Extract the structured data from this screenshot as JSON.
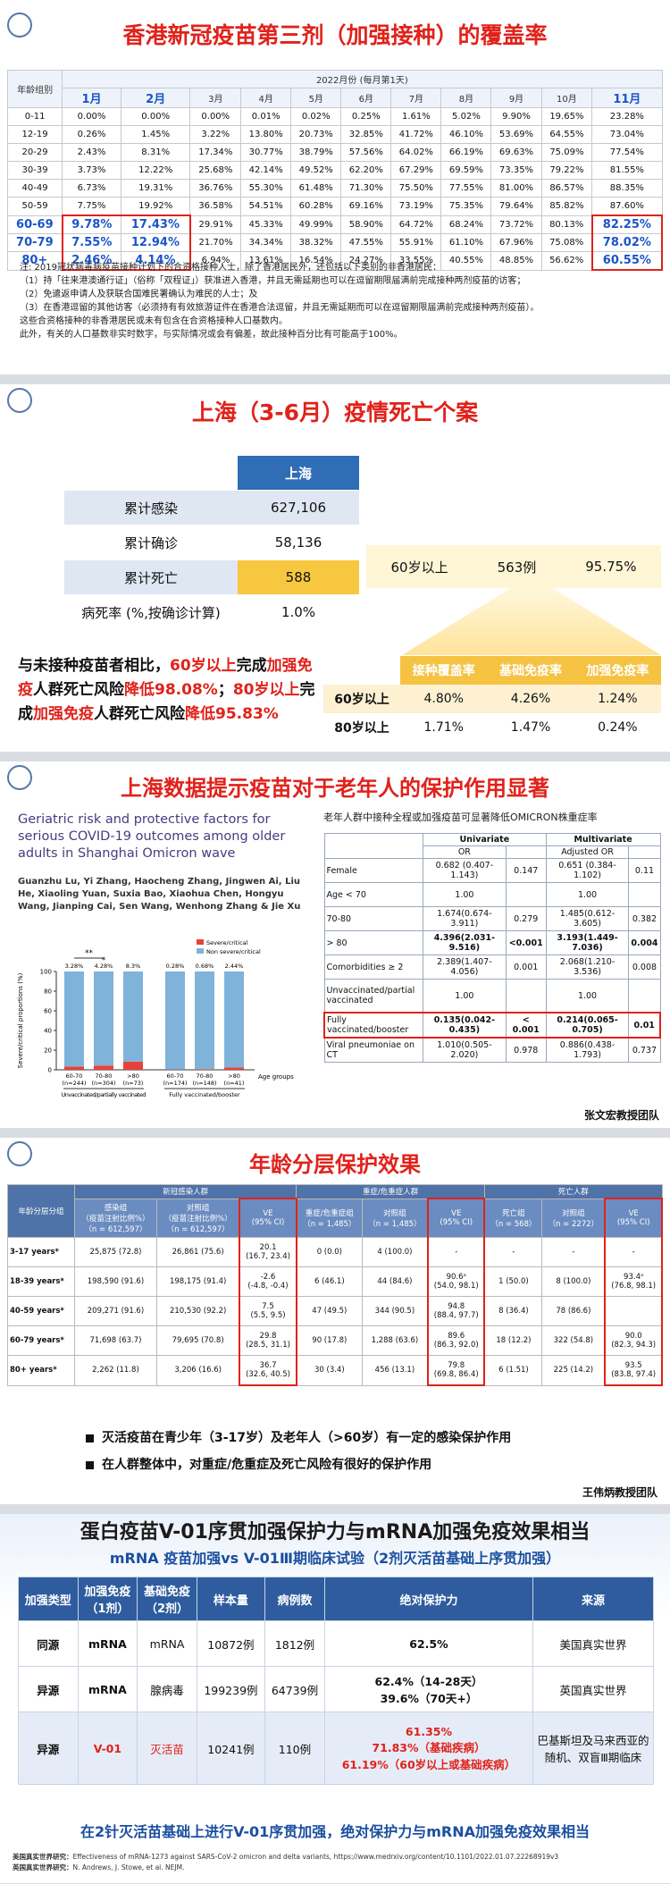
{
  "s1": {
    "title": "香港新冠疫苗第三剂（加强接种）的覆盖率",
    "table": {
      "corner": "年龄组别",
      "span_header": "2022月份 (每月第1天)",
      "months": [
        "1月",
        "2月",
        "3月",
        "4月",
        "5月",
        "6月",
        "7月",
        "8月",
        "9月",
        "10月",
        "11月"
      ],
      "rows": [
        [
          "0-11",
          "0.00%",
          "0.00%",
          "0.00%",
          "0.01%",
          "0.02%",
          "0.25%",
          "1.61%",
          "5.02%",
          "9.90%",
          "19.65%",
          "23.28%"
        ],
        [
          "12-19",
          "0.26%",
          "1.45%",
          "3.22%",
          "13.80%",
          "20.73%",
          "32.85%",
          "41.72%",
          "46.10%",
          "53.69%",
          "64.55%",
          "73.04%"
        ],
        [
          "20-29",
          "2.43%",
          "8.31%",
          "17.34%",
          "30.77%",
          "38.79%",
          "57.56%",
          "64.02%",
          "66.19%",
          "69.63%",
          "75.09%",
          "77.54%"
        ],
        [
          "30-39",
          "3.73%",
          "12.22%",
          "25.68%",
          "42.14%",
          "49.52%",
          "62.20%",
          "67.29%",
          "69.59%",
          "73.35%",
          "79.22%",
          "81.55%"
        ],
        [
          "40-49",
          "6.73%",
          "19.31%",
          "36.76%",
          "55.30%",
          "61.48%",
          "71.30%",
          "75.50%",
          "77.55%",
          "81.00%",
          "86.57%",
          "88.35%"
        ],
        [
          "50-59",
          "7.75%",
          "19.92%",
          "36.58%",
          "54.51%",
          "60.28%",
          "69.16%",
          "73.19%",
          "75.35%",
          "79.64%",
          "85.82%",
          "87.60%"
        ],
        [
          "60-69",
          "9.78%",
          "17.43%",
          "29.91%",
          "45.33%",
          "49.99%",
          "58.90%",
          "64.72%",
          "68.24%",
          "73.72%",
          "80.13%",
          "82.25%"
        ],
        [
          "70-79",
          "7.55%",
          "12.94%",
          "21.70%",
          "34.34%",
          "38.32%",
          "47.55%",
          "55.91%",
          "61.10%",
          "67.96%",
          "75.08%",
          "78.02%"
        ],
        [
          "80+",
          "2.46%",
          "4.14%",
          "6.94%",
          "13.61%",
          "16.54%",
          "24.27%",
          "33.55%",
          "40.55%",
          "48.85%",
          "56.62%",
          "60.55%"
        ]
      ]
    },
    "notes": [
      "注: 2019冠状病毒病疫苗接种计划下的合资格接种人士，除了香港居民外，还包括以下类别的非香港居民：",
      "（1）持「往来港澳通行证」（俗称「双程证」）获准进入香港，并且无需延期也可以在逗留期限届满前完成接种两剂疫苗的访客；",
      "（2）免遣返申请人及获联合国难民署确认为难民的人士；及",
      "（3）在香港逗留的其他访客（必须持有有效旅游证件在香港合法逗留，并且无需延期而可以在逗留期限届满前完成接种两剂疫苗）。",
      "这些合资格接种的非香港居民或未有包含在合资格接种人口基数内。",
      "此外，有关的人口基数非实时数字，与实际情况或会有偏差，故此接种百分比有可能高于100%。"
    ]
  },
  "s2": {
    "title": "上海（3-6月）疫情死亡个案",
    "table": {
      "header": "上海",
      "rows": [
        [
          "累计感染",
          "627,106"
        ],
        [
          "累计确诊",
          "58,136"
        ],
        [
          "累计死亡",
          "588"
        ],
        [
          "病死率 (%,按确诊计算)",
          "1.0%"
        ]
      ]
    },
    "callout": [
      "60岁以上",
      "563例",
      "95.75%"
    ],
    "summary": [
      {
        "text": "与未接种疫苗者相比，",
        "red": false
      },
      {
        "text": "60岁以上",
        "red": true
      },
      {
        "text": "完成",
        "red": false
      },
      {
        "text": "加强免疫",
        "red": true
      },
      {
        "text": "人群死亡风险",
        "red": false
      },
      {
        "text": "降低98.08%",
        "red": true
      },
      {
        "text": "；",
        "red": false
      },
      {
        "text": "80岁以上",
        "red": true
      },
      {
        "text": "完成",
        "red": false
      },
      {
        "text": "加强免疫",
        "red": true
      },
      {
        "text": "人群死亡风险",
        "red": false
      },
      {
        "text": "降低95.83%",
        "red": true
      }
    ],
    "coverage": {
      "headers": [
        "接种覆盖率",
        "基础免疫率",
        "加强免疫率"
      ],
      "rows": [
        [
          "60岁以上",
          "4.80%",
          "4.26%",
          "1.24%"
        ],
        [
          "80岁以上",
          "1.71%",
          "1.47%",
          "0.24%"
        ]
      ]
    }
  },
  "s3": {
    "title": "上海数据提示疫苗对于老年人的保护作用显著",
    "paper_title": "Geriatric risk and protective factors for serious COVID-19 outcomes among older adults in Shanghai Omicron wave",
    "authors": "Guanzhu Lu, Yi Zhang, Haocheng Zhang, Jingwen Ai, Liu He, Xiaoling Yuan, Suxia Bao, Xiaohua Chen, Hongyu Wang, Jianping Cai, Sen Wang, Wenhong Zhang & Jie Xu",
    "figure": {
      "type": "bar",
      "y_label": "Severe/critical proportions (%)",
      "x_label": "Age groups",
      "categories": [
        "60-70",
        "70-80",
        ">80",
        "60-70",
        "70-80",
        ">80"
      ],
      "n_labels": [
        "(n=244)",
        "(n=304)",
        "(n=73)",
        "(n=174)",
        "(n=148)",
        "(n=41)"
      ],
      "groups": [
        "Unvaccinated/partially vaccinated",
        "Fully vaccinated/booster"
      ],
      "series": [
        {
          "name": "Severe/critical",
          "color": "#e8413c",
          "values": [
            3.28,
            4.28,
            8.3,
            0.28,
            0.68,
            2.44
          ],
          "value_labels": [
            "3.28%",
            "4.28%",
            "8.3%",
            "0.28%",
            "0.68%",
            "2.44%"
          ]
        },
        {
          "name": "Non severe/critical",
          "color": "#7fb3d9",
          "values": [
            96.72,
            95.72,
            91.7,
            99.72,
            99.32,
            97.56
          ]
        }
      ],
      "ylim": [
        0,
        100
      ],
      "yticks": [
        0,
        20,
        40,
        60,
        80,
        100
      ],
      "annotations": [
        "**",
        "*"
      ]
    },
    "table_title": "老年人群中接种全程或加强疫苗可显著降低OMICRON株重症率",
    "table": {
      "groups": [
        "Univariate",
        "Multivariate"
      ],
      "sub_headers": [
        "OR",
        "Adjusted OR"
      ],
      "rows": [
        [
          "Female",
          "0.682 (0.407-1.143)",
          "0.147",
          "0.651 (0.384-1.102)",
          "0.11"
        ],
        [
          "Age < 70",
          "1.00",
          null,
          "1.00",
          null
        ],
        [
          "70-80",
          "1.674(0.674-3.911)",
          "0.279",
          "1.485(0.612-3.605)",
          "0.382"
        ],
        [
          "> 80",
          "4.396(2.031-9.516)",
          "<0.001",
          "3.193(1.449-7.036)",
          "0.004"
        ],
        [
          "Comorbidities ≥ 2",
          "2.389(1.407-4.056)",
          "0.001",
          "2.068(1.210-3.536)",
          "0.008"
        ],
        [
          "Unvaccinated/partial vaccinated",
          "1.00",
          null,
          "1.00",
          null
        ],
        [
          "Fully vaccinated/booster",
          "0.135(0.042-0.435)",
          "< 0.001",
          "0.214(0.065-0.705)",
          "0.01"
        ],
        [
          "Viral pneumoniae on CT",
          "1.010(0.505-2.020)",
          "0.978",
          "0.886(0.438-1.793)",
          "0.737"
        ]
      ]
    },
    "credit": "张文宏教授团队"
  },
  "s4": {
    "title": "年龄分层保护效果",
    "table": {
      "corner": "年龄分层分组",
      "groups": [
        {
          "name": "新冠感染人群",
          "cols": [
            "感染组\n（疫苗注射比例%）\n（n = 612,597）",
            "对照组\n（疫苗注射比例%）\n（n = 612,597）",
            "VE\n(95% CI)"
          ]
        },
        {
          "name": "重症/危重症人群",
          "cols": [
            "重症/危重症组\n（n = 1,485）",
            "对照组\n（n = 1,485）",
            "VE\n(95% CI)"
          ]
        },
        {
          "name": "死亡人群",
          "cols": [
            "死亡组\n（n = 568）",
            "对照组\n（n = 2272）",
            "VE\n(95% CI)"
          ]
        }
      ],
      "rows": [
        [
          "3-17 years*",
          "25,875 (72.8)",
          "26,861 (75.6)",
          "20.1\n(16.7, 23.4)",
          "0 (0.0)",
          "4 (100.0)",
          "-",
          "-",
          "-",
          "-"
        ],
        [
          "18-39 years*",
          "198,590 (91.6)",
          "198,175 (91.4)",
          "-2.6\n(-4.8, -0.4)",
          "6 (46.1)",
          "44 (84.6)",
          "90.6ᵃ\n(54.0, 98.1)",
          "1 (50.0)",
          "8 (100.0)",
          "93.4ᵃ\n(76.8, 98.1)"
        ],
        [
          "40-59 years*",
          "209,271 (91.6)",
          "210,530 (92.2)",
          "7.5\n(5.5, 9.5)",
          "47 (49.5)",
          "344 (90.5)",
          "94.8\n(88.4, 97.7)",
          "8 (36.4)",
          "78 (86.6)",
          null
        ],
        [
          "60-79 years*",
          "71,698 (63.7)",
          "79,695 (70.8)",
          "29.8\n(28.5, 31.1)",
          "90 (17.8)",
          "1,288 (63.6)",
          "89.6\n(86.3, 92.0)",
          "18 (12.2)",
          "322 (54.8)",
          "90.0\n(82.3, 94.3)"
        ],
        [
          "80+ years*",
          "2,262 (11.8)",
          "3,206 (16.6)",
          "36.7\n(32.6, 40.5)",
          "30 (3.4)",
          "456 (13.1)",
          "79.8\n(69.8, 86.4)",
          "6 (1.51)",
          "225 (14.2)",
          "93.5\n(83.8, 97.4)"
        ]
      ]
    },
    "bullets": [
      "灭活疫苗在青少年（3-17岁）及老年人（>60岁）有一定的感染保护作用",
      "在人群整体中，对重症/危重症及死亡风险有很好的保护作用"
    ],
    "credit": "王伟炳教授团队"
  },
  "s5": {
    "title": "蛋白疫苗V-01序贯加强保护力与mRNA加强免疫效果相当",
    "subtitle": "mRNA 疫苗加强vs V-01Ⅲ期临床试验（2剂灭活苗基础上序贯加强）",
    "table": {
      "headers": [
        "加强类型",
        "加强免疫\n（1剂）",
        "基础免疫\n（2剂）",
        "样本量",
        "病例数",
        "绝对保护力",
        "来源"
      ],
      "rows": [
        [
          "同源",
          "mRNA",
          "mRNA",
          "10872例",
          "1812例",
          "62.5%",
          "美国真实世界"
        ],
        [
          "异源",
          "mRNA",
          "腺病毒",
          "199239例",
          "64739例",
          "62.4%（14-28天）\n39.6%（70天+）",
          "英国真实世界"
        ],
        [
          "异源",
          "V-01",
          "灭活苗",
          "10241例",
          "110例",
          "61.35%\n71.83%（基础疾病）\n61.19%（60岁以上或基础疾病）",
          "巴基斯坦及马来西亚的随机、双盲Ⅲ期临床"
        ]
      ]
    },
    "conclusion": "在2针灭活苗基础上进行V-01序贯加强，绝对保护力与mRNA加强免疫效果相当",
    "references": [
      {
        "label": "美国真实世界研究：",
        "text": "Effectiveness of mRNA-1273 against SARS-CoV-2 omicron and delta variants, https://www.medrxiv.org/content/10.1101/2022.01.07.22268919v3"
      },
      {
        "label": "英国真实世界研究：",
        "text": "N. Andrews, J. Stowe, et al. NEJM."
      }
    ]
  }
}
